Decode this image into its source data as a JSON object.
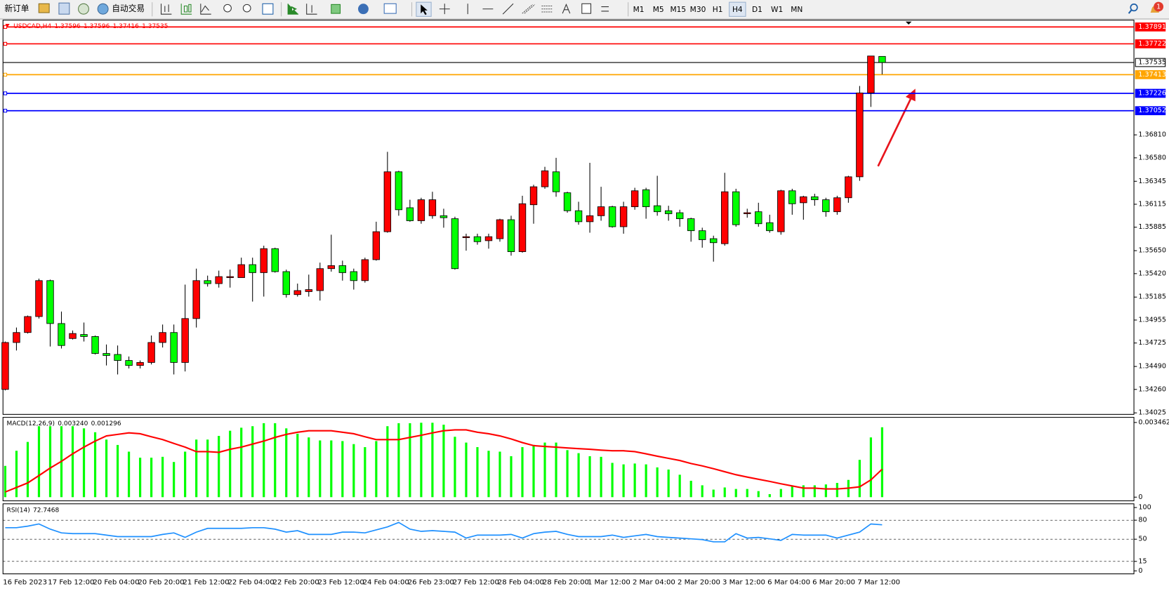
{
  "toolbar": {
    "new_order": "新订单",
    "auto_trading": "自动交易",
    "timeframes": [
      "M1",
      "M5",
      "M15",
      "M30",
      "H1",
      "H4",
      "D1",
      "W1",
      "MN"
    ],
    "active_timeframe_index": 5,
    "notifications": "1"
  },
  "chart_data": [
    {
      "type": "candlestick",
      "title": "USDCAD,H4",
      "up_color": "#ff0000",
      "down_color": "#00ff00",
      "title_color": "#ff0000",
      "categories": [
        "16 Feb 2023",
        null,
        null,
        null,
        "17 Feb 12:00",
        null,
        null,
        null,
        "20 Feb 04:00",
        null,
        null,
        null,
        "20 Feb 20:00",
        null,
        null,
        null,
        "21 Feb 12:00",
        null,
        null,
        null,
        "22 Feb 04:00",
        null,
        null,
        null,
        "22 Feb 20:00",
        null,
        null,
        null,
        "23 Feb 12:00",
        null,
        null,
        null,
        "24 Feb 04:00",
        null,
        null,
        null,
        "26 Feb 23:00",
        null,
        null,
        null,
        "27 Feb 12:00",
        null,
        null,
        null,
        "28 Feb 04:00",
        null,
        null,
        null,
        "28 Feb 20:00",
        null,
        null,
        null,
        "1 Mar 12:00",
        null,
        null,
        null,
        "2 Mar 04:00",
        null,
        null,
        null,
        "2 Mar 20:00",
        null,
        null,
        null,
        "3 Mar 12:00",
        null,
        null,
        null,
        "6 Mar 04:00",
        null,
        null,
        null,
        "6 Mar 20:00",
        null,
        null,
        null,
        "7 Mar 12:00",
        null,
        null
      ],
      "open": [
        1.3426,
        1.3473,
        1.3483,
        1.3499,
        1.3535,
        1.3492,
        1.3477,
        1.3481,
        1.3479,
        1.3462,
        1.3461,
        1.3455,
        1.345,
        1.3453,
        1.3473,
        1.3483,
        1.3453,
        1.3497,
        1.3535,
        1.3532,
        1.3538,
        1.3538,
        1.3551,
        1.3543,
        1.3567,
        1.3544,
        1.3521,
        1.3524,
        1.3525,
        1.3547,
        1.355,
        1.3544,
        1.3535,
        1.3556,
        1.3584,
        1.3644,
        1.3608,
        1.3595,
        1.36,
        1.36,
        1.3597,
        1.3578,
        1.3579,
        1.3575,
        1.3577,
        1.3596,
        1.3564,
        1.3611,
        1.3629,
        1.3644,
        1.3623,
        1.3605,
        1.3594,
        1.36,
        1.3609,
        1.3589,
        1.3609,
        1.3626,
        1.361,
        1.3605,
        1.3603,
        1.3597,
        1.3585,
        1.3577,
        1.3572,
        1.3624,
        1.3602,
        1.3604,
        1.3593,
        1.3584,
        1.3625,
        1.3613,
        1.3619,
        1.3616,
        1.3604,
        1.3618,
        1.3639,
        1.3723,
        1.37596
      ],
      "high": [
        1.3474,
        1.3488,
        1.35,
        1.3537,
        1.3536,
        1.3504,
        1.3485,
        1.3493,
        1.348,
        1.3471,
        1.347,
        1.3459,
        1.3455,
        1.348,
        1.3491,
        1.3491,
        1.3531,
        1.3547,
        1.354,
        1.3545,
        1.3546,
        1.3558,
        1.3558,
        1.357,
        1.3568,
        1.3546,
        1.3532,
        1.3541,
        1.3553,
        1.3581,
        1.3555,
        1.3547,
        1.3558,
        1.3594,
        1.3664,
        1.3645,
        1.3616,
        1.3618,
        1.3624,
        1.3607,
        1.3599,
        1.3582,
        1.3582,
        1.3582,
        1.3597,
        1.36,
        1.362,
        1.3631,
        1.3649,
        1.3658,
        1.3624,
        1.3614,
        1.3653,
        1.3629,
        1.361,
        1.3614,
        1.3628,
        1.3628,
        1.364,
        1.361,
        1.3606,
        1.3598,
        1.3588,
        1.358,
        1.3643,
        1.3627,
        1.3607,
        1.3613,
        1.3601,
        1.3626,
        1.3627,
        1.362,
        1.3622,
        1.3618,
        1.362,
        1.364,
        1.373,
        1.376,
        1.37596
      ],
      "low": [
        1.3425,
        1.3465,
        1.3482,
        1.3497,
        1.3469,
        1.3467,
        1.3476,
        1.3474,
        1.3461,
        1.345,
        1.3441,
        1.3447,
        1.3447,
        1.3451,
        1.3468,
        1.3441,
        1.3444,
        1.3488,
        1.3529,
        1.3528,
        1.3528,
        1.3538,
        1.3514,
        1.3519,
        1.3543,
        1.3518,
        1.3519,
        1.3519,
        1.3515,
        1.3544,
        1.3535,
        1.3526,
        1.3533,
        1.3555,
        1.3583,
        1.36,
        1.3594,
        1.3592,
        1.3597,
        1.3588,
        1.3546,
        1.3565,
        1.3571,
        1.3567,
        1.3574,
        1.356,
        1.3563,
        1.3592,
        1.3627,
        1.3619,
        1.3603,
        1.3591,
        1.3583,
        1.3595,
        1.3588,
        1.3582,
        1.3606,
        1.3597,
        1.36,
        1.3595,
        1.3589,
        1.3574,
        1.3568,
        1.3554,
        1.357,
        1.3589,
        1.3598,
        1.3589,
        1.3583,
        1.3581,
        1.3601,
        1.3596,
        1.361,
        1.3599,
        1.3601,
        1.3613,
        1.3635,
        1.3709,
        1.37416
      ],
      "close": [
        1.3473,
        1.3483,
        1.3499,
        1.3535,
        1.3492,
        1.347,
        1.3482,
        1.3479,
        1.3462,
        1.346,
        1.3455,
        1.345,
        1.3453,
        1.3473,
        1.3483,
        1.3453,
        1.3497,
        1.3535,
        1.3532,
        1.3539,
        1.3539,
        1.3551,
        1.3543,
        1.3567,
        1.3544,
        1.3521,
        1.3525,
        1.3526,
        1.3547,
        1.355,
        1.3543,
        1.3535,
        1.3556,
        1.3584,
        1.3644,
        1.3606,
        1.3595,
        1.3616,
        1.3616,
        1.3598,
        1.3547,
        1.3579,
        1.3574,
        1.3579,
        1.3596,
        1.3564,
        1.3612,
        1.3629,
        1.3645,
        1.3624,
        1.3605,
        1.3594,
        1.36,
        1.3609,
        1.3589,
        1.3609,
        1.3625,
        1.3609,
        1.3604,
        1.3602,
        1.3597,
        1.3585,
        1.3576,
        1.3573,
        1.3624,
        1.3591,
        1.3603,
        1.3592,
        1.3585,
        1.3625,
        1.3612,
        1.3619,
        1.3616,
        1.3604,
        1.3618,
        1.3639,
        1.3723,
        1.376,
        1.37535
      ],
      "ylim": [
        1.3401,
        1.37952
      ],
      "yticks": [
        {
          "value": 1.3681,
          "label": "1.36810"
        },
        {
          "value": 1.3658,
          "label": "1.36580"
        },
        1.36345,
        1.36115,
        1.35885,
        {
          "value": 1.3565,
          "label": "1.35650"
        },
        {
          "value": 1.3542,
          "label": "1.35420"
        },
        1.35185,
        1.34955,
        1.34725,
        {
          "value": 1.3449,
          "label": "1.34490"
        },
        {
          "value": 1.3426,
          "label": "1.34260"
        },
        1.34025
      ],
      "hlines": [
        {
          "value": 1.37891,
          "color": "#ff0000"
        },
        {
          "value": 1.37722,
          "color": "#ff0000"
        },
        {
          "value": 1.37535,
          "color": "#000000"
        },
        {
          "value": 1.37413,
          "color": "#ffa500"
        },
        {
          "value": 1.37226,
          "color": "#0000ff"
        },
        {
          "value": 1.37052,
          "color": "#0000ff"
        }
      ]
    },
    {
      "type": "macd",
      "title": "MACD(12,26,9)",
      "readout_labels": [
        "0.003240",
        "0.001296"
      ],
      "color": "#00ff00",
      "signal_color": "#ff0000",
      "values": [
        0.00145,
        0.00215,
        0.00256,
        0.00329,
        0.00329,
        0.00329,
        0.00329,
        0.00319,
        0.00301,
        0.00267,
        0.00242,
        0.00211,
        0.00183,
        0.00183,
        0.00187,
        0.00163,
        0.00211,
        0.00267,
        0.00267,
        0.00284,
        0.00308,
        0.00322,
        0.00329,
        0.00343,
        0.00343,
        0.00319,
        0.00294,
        0.00277,
        0.00263,
        0.00263,
        0.0026,
        0.00246,
        0.00232,
        0.0026,
        0.00329,
        0.00343,
        0.00343,
        0.00345,
        0.00345,
        0.00336,
        0.0028,
        0.00253,
        0.00232,
        0.00215,
        0.00211,
        0.0019,
        0.00232,
        0.00242,
        0.00253,
        0.00253,
        0.00218,
        0.00204,
        0.0019,
        0.00187,
        0.00159,
        0.00152,
        0.00156,
        0.00152,
        0.00138,
        0.00128,
        0.00104,
        0.00076,
        0.00055,
        0.00035,
        0.00045,
        0.00038,
        0.00038,
        0.00028,
        0.00014,
        0.00038,
        0.00052,
        0.00055,
        0.00055,
        0.00059,
        0.00066,
        0.0008,
        0.00173,
        0.00277,
        0.00324
      ],
      "signal_values": [
        0.00024,
        0.00045,
        0.00066,
        0.001,
        0.00135,
        0.00166,
        0.00201,
        0.00232,
        0.0026,
        0.00284,
        0.00291,
        0.00298,
        0.00294,
        0.0028,
        0.00267,
        0.00249,
        0.00232,
        0.00211,
        0.00211,
        0.00208,
        0.00222,
        0.00232,
        0.00246,
        0.0026,
        0.00277,
        0.00291,
        0.00301,
        0.00308,
        0.00308,
        0.00308,
        0.00301,
        0.00294,
        0.0028,
        0.00267,
        0.00267,
        0.00267,
        0.00277,
        0.00287,
        0.00298,
        0.00308,
        0.00312,
        0.00312,
        0.00301,
        0.00294,
        0.00284,
        0.0027,
        0.00253,
        0.00239,
        0.00235,
        0.00232,
        0.00228,
        0.00225,
        0.00222,
        0.00218,
        0.00215,
        0.00215,
        0.00211,
        0.00201,
        0.0019,
        0.0018,
        0.0017,
        0.00156,
        0.00145,
        0.00132,
        0.00118,
        0.00104,
        0.00093,
        0.00083,
        0.00073,
        0.00062,
        0.00052,
        0.00042,
        0.00042,
        0.00038,
        0.00038,
        0.00042,
        0.00048,
        0.0008,
        0.001296
      ],
      "ylim": [
        -0.00017,
        0.0037
      ],
      "yticks": [
        0.003462,
        0
      ]
    },
    {
      "type": "rsi",
      "title": "RSI(14)",
      "color": "#1e90ff",
      "values": [
        68.2,
        68.2,
        70.6,
        74.1,
        65.9,
        60.0,
        58.8,
        58.8,
        58.8,
        56.5,
        54.1,
        54.1,
        54.1,
        54.1,
        57.6,
        60.0,
        52.9,
        61.2,
        67.1,
        67.1,
        67.1,
        67.1,
        68.2,
        68.2,
        65.9,
        61.2,
        63.5,
        57.6,
        57.6,
        57.6,
        61.2,
        61.2,
        60.0,
        64.7,
        69.4,
        76.5,
        65.9,
        62.4,
        63.5,
        62.4,
        61.2,
        51.8,
        56.5,
        56.5,
        56.5,
        57.6,
        51.8,
        58.8,
        61.2,
        62.4,
        57.6,
        54.1,
        54.1,
        54.1,
        56.5,
        52.9,
        55.3,
        57.6,
        54.1,
        52.9,
        51.8,
        50.6,
        49.4,
        45.9,
        45.9,
        58.8,
        51.8,
        52.9,
        50.6,
        48.2,
        57.6,
        56.5,
        56.5,
        56.5,
        51.8,
        56.5,
        61.2,
        74.1,
        72.7468
      ],
      "ylim": [
        -4.7,
        105.9
      ],
      "yticks": [
        100,
        80,
        50,
        15,
        0
      ]
    }
  ]
}
